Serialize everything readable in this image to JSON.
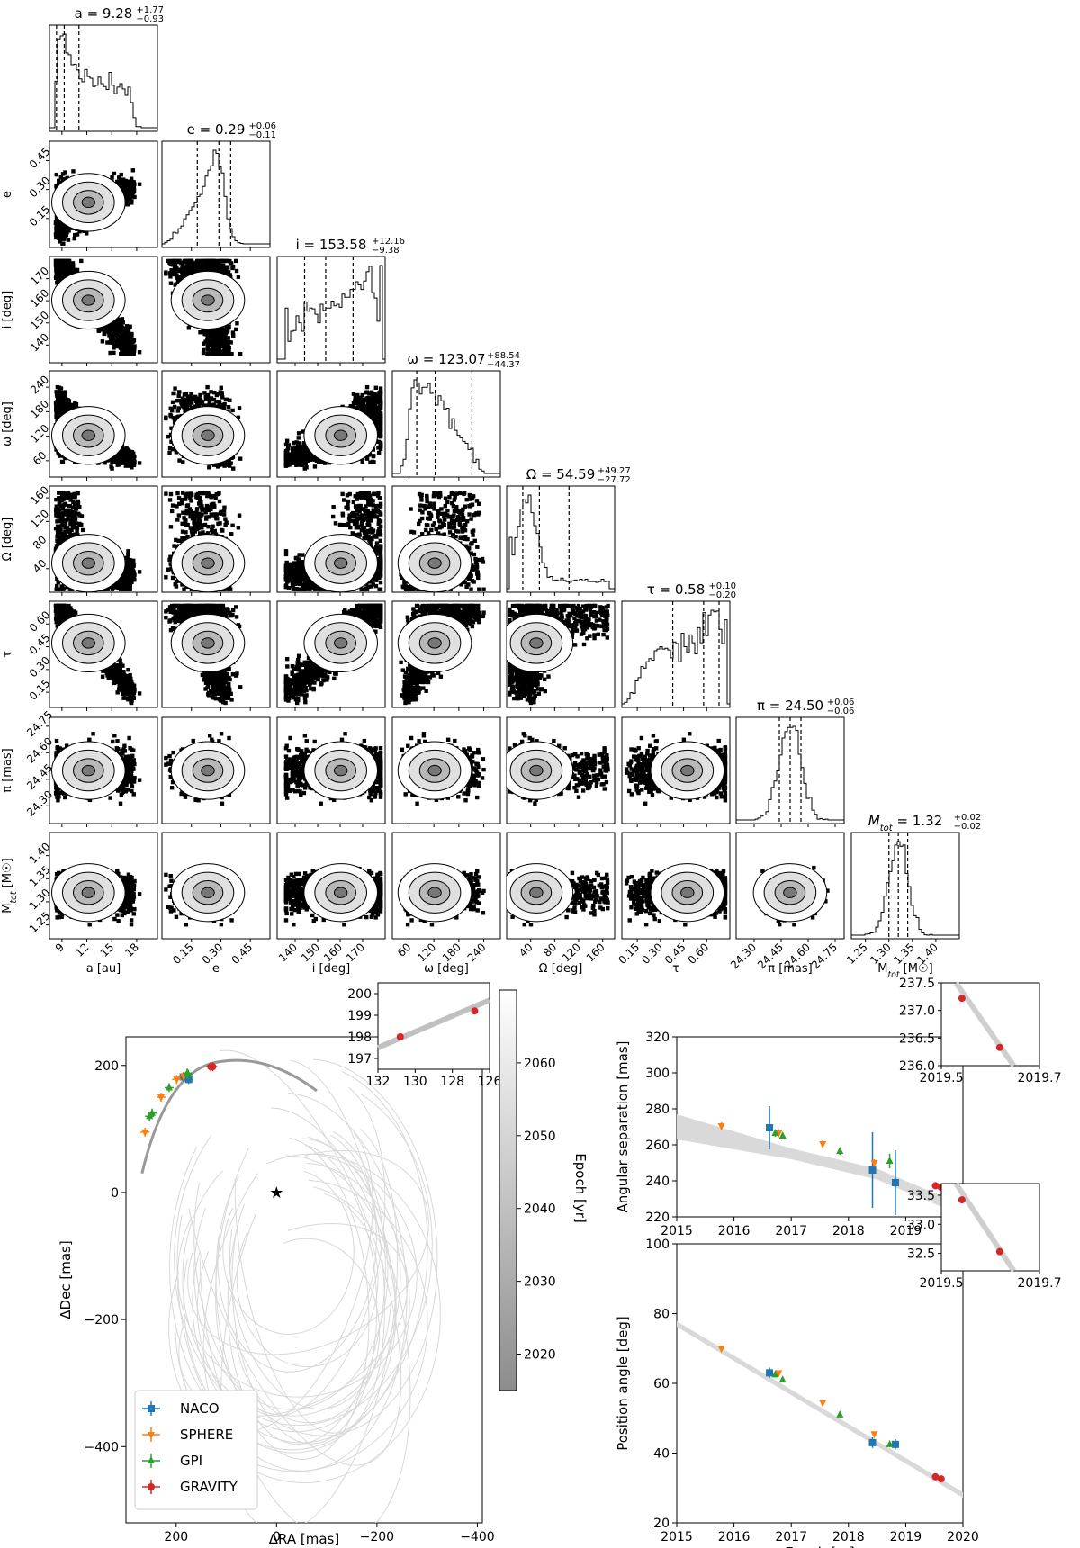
{
  "figure": {
    "corner_titles": [
      {
        "lhs": "a = ",
        "val": "9.28",
        "plus": "+1.77",
        "minus": "−0.93"
      },
      {
        "lhs": "e = ",
        "val": "0.29",
        "plus": "+0.06",
        "minus": "−0.11"
      },
      {
        "lhs": "i = ",
        "val": "153.58",
        "plus": "+12.16",
        "minus": "−9.38"
      },
      {
        "lhs": "ω = ",
        "val": "123.07",
        "plus": "+88.54",
        "minus": "−44.37"
      },
      {
        "lhs": "Ω = ",
        "val": "54.59",
        "plus": "+49.27",
        "minus": "−27.72"
      },
      {
        "lhs": "τ = ",
        "val": "0.58",
        "plus": "+0.10",
        "minus": "−0.20"
      },
      {
        "lhs": "π = ",
        "val": "24.50",
        "plus": "+0.06",
        "minus": "−0.06"
      },
      {
        "lhs": "M_tot = ",
        "val": "1.32",
        "plus": "+0.02",
        "minus": "−0.02"
      }
    ]
  },
  "chart_data": [
    {
      "type": "corner",
      "parameters": [
        {
          "key": "a",
          "xlabel": "a [au]",
          "ylabel": "",
          "range": [
            7.5,
            20.5
          ],
          "ticks": [
            9,
            12,
            15,
            18
          ],
          "tick_labels": [
            "9",
            "12",
            "15",
            "18"
          ],
          "quantiles": [
            8.35,
            9.28,
            11.05
          ]
        },
        {
          "key": "e",
          "xlabel": "e",
          "ylabel": "e",
          "range": [
            0.0,
            0.55
          ],
          "ticks": [
            0.15,
            0.3,
            0.45
          ],
          "tick_labels": [
            "0.15",
            "0.30",
            "0.45"
          ],
          "quantiles": [
            0.18,
            0.29,
            0.35
          ]
        },
        {
          "key": "i",
          "xlabel": "i [deg]",
          "ylabel": "i [deg]",
          "range": [
            132,
            180
          ],
          "ticks": [
            140,
            150,
            160,
            170
          ],
          "tick_labels": [
            "140",
            "150",
            "160",
            "170"
          ],
          "quantiles": [
            144.2,
            153.58,
            165.74
          ]
        },
        {
          "key": "omega",
          "xlabel": "ω [deg]",
          "ylabel": "ω [deg]",
          "range": [
            20,
            280
          ],
          "ticks": [
            60,
            120,
            180,
            240
          ],
          "tick_labels": [
            "60",
            "120",
            "180",
            "240"
          ],
          "quantiles": [
            78.7,
            123.07,
            211.6
          ]
        },
        {
          "key": "Omega",
          "xlabel": "Ω [deg]",
          "ylabel": "Ω [deg]",
          "range": [
            0,
            180
          ],
          "ticks": [
            40,
            80,
            120,
            160
          ],
          "tick_labels": [
            "40",
            "80",
            "120",
            "160"
          ],
          "quantiles": [
            26.9,
            54.59,
            103.9
          ]
        },
        {
          "key": "tau",
          "xlabel": "τ",
          "ylabel": "τ",
          "range": [
            0.05,
            0.75
          ],
          "ticks": [
            0.15,
            0.3,
            0.45,
            0.6
          ],
          "tick_labels": [
            "0.15",
            "0.30",
            "0.45",
            "0.60"
          ],
          "quantiles": [
            0.38,
            0.58,
            0.68
          ]
        },
        {
          "key": "pi",
          "xlabel": "π [mas]",
          "ylabel": "π [mas]",
          "range": [
            24.2,
            24.8
          ],
          "ticks": [
            24.3,
            24.45,
            24.6,
            24.75
          ],
          "tick_labels": [
            "24.30",
            "24.45",
            "24.60",
            "24.75"
          ],
          "quantiles": [
            24.44,
            24.5,
            24.56
          ]
        },
        {
          "key": "Mtot",
          "xlabel": "M_tot [M☉]",
          "ylabel": "M_tot [M☉]",
          "range": [
            1.22,
            1.45
          ],
          "ticks": [
            1.25,
            1.3,
            1.35,
            1.4
          ],
          "tick_labels": [
            "1.25",
            "1.30",
            "1.35",
            "1.40"
          ],
          "quantiles": [
            1.3,
            1.32,
            1.34
          ]
        }
      ]
    },
    {
      "type": "scatter",
      "subtype": "sky-plane orbit",
      "xlabel": "ΔRA [mas]",
      "ylabel": "ΔDec [mas]",
      "xlim": [
        300,
        -410
      ],
      "ylim": [
        -520,
        245
      ],
      "xticks": [
        200,
        0,
        -200,
        -400
      ],
      "yticks": [
        200,
        0,
        -200,
        -400
      ],
      "star": {
        "x": 0,
        "y": 0
      },
      "legend_position": "lower-left",
      "series": [
        {
          "name": "NACO",
          "color": "#1f77b4",
          "marker": "square",
          "points": [
            [
              186,
              182
            ],
            [
              175,
              178
            ]
          ]
        },
        {
          "name": "SPHERE",
          "color": "#ff7f0e",
          "marker": "triangle-down",
          "points": [
            [
              262,
              95
            ],
            [
              230,
              150
            ],
            [
              199,
              178
            ],
            [
              185,
              183
            ]
          ]
        },
        {
          "name": "GPI",
          "color": "#2ca02c",
          "marker": "triangle-up",
          "points": [
            [
              253,
              120
            ],
            [
              248,
              125
            ],
            [
              214,
              165
            ],
            [
              178,
              188
            ],
            [
              176,
              186
            ]
          ]
        },
        {
          "name": "GRAVITY",
          "color": "#d62728",
          "marker": "circle",
          "points": [
            [
              131,
              198
            ],
            [
              127,
              198
            ]
          ]
        }
      ],
      "colorbar": {
        "label": "Epoch [yr]",
        "range": [
          2015,
          2070
        ],
        "ticks": [
          2020,
          2030,
          2040,
          2050,
          2060
        ]
      },
      "inset": {
        "xlim": [
          132,
          126
        ],
        "ylim": [
          196.5,
          200.5
        ],
        "xticks": [
          132,
          130,
          128,
          126
        ],
        "yticks": [
          197,
          198,
          199,
          200
        ],
        "points": [
          [
            130.8,
            198.0
          ],
          [
            126.8,
            199.2
          ]
        ]
      }
    },
    {
      "type": "scatter",
      "xlabel": "",
      "ylabel": "Angular separation [mas]",
      "xlim": [
        2015,
        2020
      ],
      "ylim": [
        220,
        320
      ],
      "xticks": [
        2015,
        2016,
        2017,
        2018,
        2019,
        2020
      ],
      "yticks": [
        220,
        240,
        260,
        280,
        300,
        320
      ],
      "series": [
        {
          "name": "NACO",
          "color": "#1f77b4",
          "marker": "square",
          "points": [
            [
              2016.62,
              269.5,
              12
            ],
            [
              2018.42,
              246,
              21
            ],
            [
              2018.82,
              239,
              18
            ]
          ]
        },
        {
          "name": "SPHERE",
          "color": "#ff7f0e",
          "marker": "triangle-down",
          "points": [
            [
              2015.78,
              270.5,
              2
            ],
            [
              2016.78,
              266.5,
              2
            ],
            [
              2017.55,
              260.5,
              2
            ],
            [
              2018.45,
              250,
              2
            ]
          ]
        },
        {
          "name": "GPI",
          "color": "#2ca02c",
          "marker": "triangle-up",
          "points": [
            [
              2016.72,
              266.5,
              2
            ],
            [
              2016.85,
              265,
              2
            ],
            [
              2017.85,
              256.5,
              2
            ],
            [
              2018.72,
              251,
              4
            ]
          ]
        },
        {
          "name": "GRAVITY",
          "color": "#d62728",
          "marker": "circle",
          "points": [
            [
              2019.52,
              237.3,
              0.5
            ],
            [
              2019.62,
              236.4,
              0.5
            ]
          ]
        }
      ],
      "inset": {
        "xlim": [
          2019.5,
          2019.7
        ],
        "ylim": [
          236.0,
          237.5
        ],
        "xticks": [
          "2019.5",
          "2019.7"
        ],
        "yticks": [
          236.0,
          236.5,
          237.0,
          237.5
        ],
        "points": [
          [
            2019.542,
            237.22,
            0.02
          ],
          [
            2019.619,
            236.33,
            0.06
          ]
        ]
      }
    },
    {
      "type": "scatter",
      "xlabel": "Epoch [yr]",
      "ylabel": "Position angle [deg]",
      "xlim": [
        2015,
        2020
      ],
      "ylim": [
        20,
        100
      ],
      "xticks": [
        2015,
        2016,
        2017,
        2018,
        2019,
        2020
      ],
      "yticks": [
        20,
        40,
        60,
        80,
        100
      ],
      "series": [
        {
          "name": "NACO",
          "color": "#1f77b4",
          "marker": "square",
          "points": [
            [
              2016.62,
              63,
              1.5
            ],
            [
              2018.42,
              43,
              1.5
            ],
            [
              2018.82,
              42.5,
              1.5
            ]
          ]
        },
        {
          "name": "SPHERE",
          "color": "#ff7f0e",
          "marker": "triangle-down",
          "points": [
            [
              2015.78,
              70,
              0.5
            ],
            [
              2016.78,
              63,
              0.5
            ],
            [
              2017.55,
              54.5,
              0.5
            ],
            [
              2018.45,
              45.5,
              0.5
            ]
          ]
        },
        {
          "name": "GPI",
          "color": "#2ca02c",
          "marker": "triangle-up",
          "points": [
            [
              2016.72,
              62.5,
              0.5
            ],
            [
              2016.85,
              61,
              0.5
            ],
            [
              2017.85,
              51,
              0.5
            ],
            [
              2018.72,
              42.5,
              0.5
            ]
          ]
        },
        {
          "name": "GRAVITY",
          "color": "#d62728",
          "marker": "circle",
          "points": [
            [
              2019.52,
              33.2,
              0.3
            ],
            [
              2019.62,
              32.6,
              0.3
            ]
          ]
        }
      ],
      "inset": {
        "xlim": [
          2019.5,
          2019.7
        ],
        "ylim": [
          32.2,
          33.7
        ],
        "xticks": [
          "2019.5",
          "2019.7"
        ],
        "yticks": [
          32.5,
          33.0,
          33.5
        ],
        "points": [
          [
            2019.542,
            33.42,
            0.01
          ],
          [
            2019.619,
            32.53,
            0.01
          ]
        ]
      }
    }
  ]
}
